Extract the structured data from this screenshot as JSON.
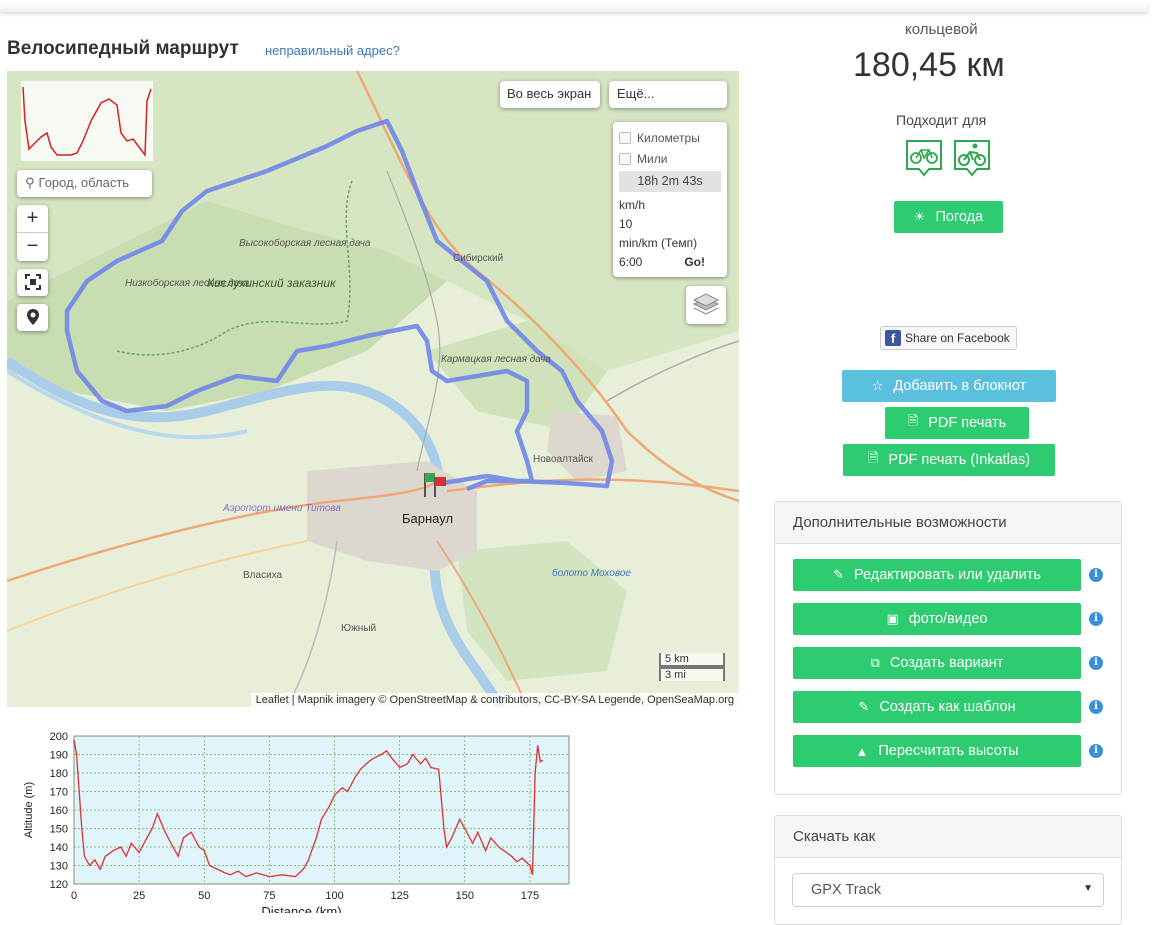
{
  "page": {
    "title": "Велосипедный маршрут",
    "wrong_address_link": "неправильный адрес?"
  },
  "map": {
    "search_placeholder": "Город, область",
    "zoom_in": "+",
    "zoom_out": "−",
    "fullscreen_label": "Во весь экран",
    "more_label": "Ещё...",
    "panel": {
      "km_label": "Километры",
      "mi_label": "Мили",
      "travel_time": "18h 2m 43s",
      "speed_label": "km/h",
      "speed_value": "10",
      "pace_label": "min/km (Темп)",
      "pace_value": "6:00",
      "go_label": "Go!"
    },
    "attribution": "Leaflet | Mapnik imagery © OpenStreetMap & contributors, CC-BY-SA Legende, OpenSeaMap.org",
    "scale_km": "5 km",
    "scale_mi": "3 mi",
    "labels": {
      "vysokoborskaya": "Высокоборская лесная дача",
      "nizkoborskaya": "Низкоборская лесная дача",
      "kislukhinsky": "Кислухинский заказник",
      "sibirsky": "Сибирский",
      "karmatskaya": "Кармацкая лесная дача",
      "novoaltaysk": "Новоалтайск",
      "airport": "Аэропорт имени Титова",
      "barnaul": "Барнаул",
      "vlasikha": "Власиха",
      "yuzhny": "Южный",
      "boloto": "болото Моховое"
    }
  },
  "chart_data": {
    "type": "line",
    "xlabel": "Distance (km)",
    "ylabel": "Altitude (m)",
    "xlim": [
      0,
      190
    ],
    "ylim": [
      120,
      200
    ],
    "x_ticks": [
      "0",
      "25",
      "50",
      "75",
      "100",
      "125",
      "150",
      "175"
    ],
    "y_ticks": [
      "120",
      "130",
      "140",
      "150",
      "160",
      "170",
      "180",
      "190",
      "200"
    ],
    "grid": true,
    "series": [
      {
        "color": "#e03030",
        "x": [
          0,
          1,
          2,
          3,
          4,
          6,
          8,
          10,
          12,
          15,
          18,
          20,
          22,
          25,
          28,
          30,
          32,
          35,
          38,
          40,
          42,
          45,
          48,
          50,
          52,
          55,
          58,
          60,
          63,
          66,
          70,
          75,
          80,
          85,
          88,
          90,
          93,
          95,
          98,
          100,
          103,
          105,
          108,
          110,
          113,
          115,
          118,
          120,
          122,
          125,
          128,
          130,
          133,
          135,
          137,
          140,
          142,
          143,
          145,
          148,
          150,
          153,
          155,
          158,
          160,
          163,
          165,
          168,
          170,
          172,
          175,
          176,
          177,
          178,
          179,
          180
        ],
        "values": [
          198,
          190,
          170,
          150,
          135,
          130,
          133,
          128,
          135,
          138,
          140,
          135,
          142,
          137,
          145,
          150,
          158,
          148,
          140,
          135,
          145,
          148,
          140,
          138,
          130,
          128,
          126,
          125,
          127,
          124,
          126,
          124,
          125,
          124,
          128,
          133,
          145,
          155,
          162,
          168,
          172,
          170,
          178,
          182,
          186,
          188,
          190,
          192,
          188,
          183,
          185,
          190,
          185,
          188,
          183,
          182,
          150,
          140,
          145,
          155,
          150,
          142,
          148,
          138,
          145,
          140,
          138,
          135,
          132,
          134,
          130,
          125,
          180,
          195,
          186,
          187
        ]
      }
    ]
  },
  "sidebar": {
    "loop_label": "кольцевой",
    "distance": "180,45 км",
    "suitable_for": "Подходит для",
    "suitable_icons": [
      "bicycle-icon",
      "mountain-bike-icon"
    ],
    "weather_button": "Погода",
    "share_facebook": "Share on Facebook",
    "add_notebook": "Добавить в блокнот",
    "pdf_print": "PDF печать",
    "pdf_print_inkatlas": "PDF печать (Inkatlas)",
    "extra_title": "Дополнительные возможности",
    "extra_buttons": [
      "Редактировать или удалить",
      "фото/видео",
      "Создать вариант",
      "Создать как шаблон",
      "Пересчитать высоты"
    ],
    "download_title": "Скачать как",
    "download_selected": "GPX Track"
  },
  "colors": {
    "green_button": "#2ecc71",
    "blue_button": "#5bc0de",
    "route": "#7b8fe8",
    "info": "#3a8fd8"
  }
}
